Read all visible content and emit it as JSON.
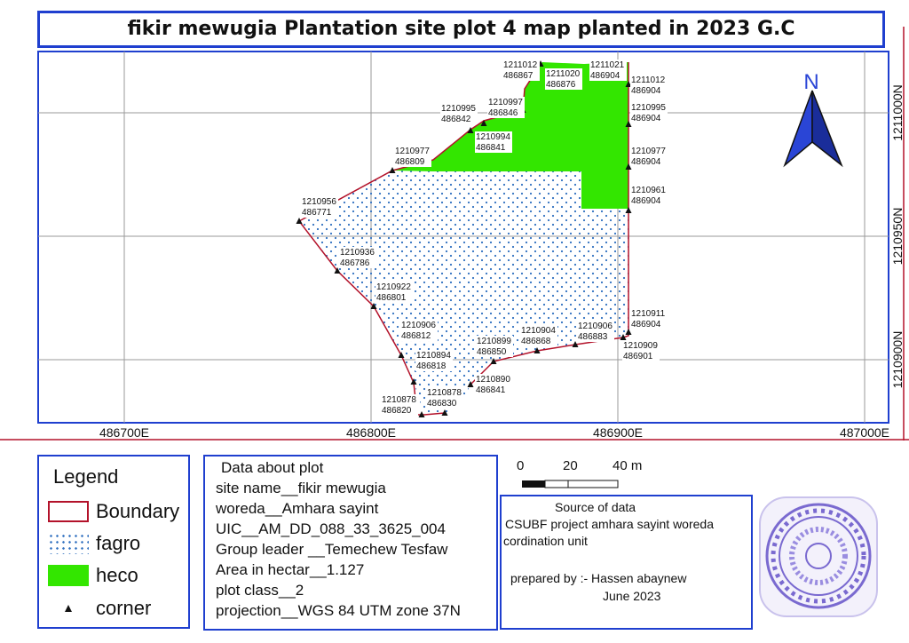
{
  "title": "fikir mewugia Plantation site plot 4 map planted in 2023 G.C",
  "map": {
    "x_ticks": [
      "486700E",
      "486800E",
      "486900E",
      "487000E"
    ],
    "y_ticks": [
      "1211000N",
      "1210950N",
      "1210900N"
    ],
    "north_label": "N",
    "points": [
      {
        "n": "1211012",
        "e": "486867"
      },
      {
        "n": "1211020",
        "e": "486876"
      },
      {
        "n": "1211021",
        "e": "486904"
      },
      {
        "n": "1211012",
        "e": "486904"
      },
      {
        "n": "1210997",
        "e": "486846"
      },
      {
        "n": "1210995",
        "e": "486842"
      },
      {
        "n": "1210995",
        "e": "486904"
      },
      {
        "n": "1210994",
        "e": "486841"
      },
      {
        "n": "1210977",
        "e": "486809"
      },
      {
        "n": "1210977",
        "e": "486904"
      },
      {
        "n": "1210961",
        "e": "486904"
      },
      {
        "n": "1210956",
        "e": "486771"
      },
      {
        "n": "1210936",
        "e": "486786"
      },
      {
        "n": "1210922",
        "e": "486801"
      },
      {
        "n": "1210911",
        "e": "486904"
      },
      {
        "n": "1210906",
        "e": "486812"
      },
      {
        "n": "1210904",
        "e": "486868"
      },
      {
        "n": "1210906",
        "e": "486883"
      },
      {
        "n": "1210909",
        "e": "486901"
      },
      {
        "n": "1210899",
        "e": "486850"
      },
      {
        "n": "1210894",
        "e": "486818"
      },
      {
        "n": "1210890",
        "e": "486841"
      },
      {
        "n": "1210878",
        "e": "486830"
      },
      {
        "n": "1210878",
        "e": "486820"
      }
    ]
  },
  "legend": {
    "title": "Legend",
    "items": [
      {
        "label": "Boundary"
      },
      {
        "label": "fagro"
      },
      {
        "label": "heco"
      },
      {
        "label": "corner"
      }
    ]
  },
  "info": {
    "title": "Data about plot",
    "lines": [
      "site name__fikir mewugia",
      "woreda__Amhara sayint",
      "UIC__AM_DD_088_33_3625_004",
      "Group leader __Temechew Tesfaw",
      "Area in hectar__1.127",
      "plot class__2",
      "projection__WGS 84 UTM zone 37N"
    ]
  },
  "scale": {
    "labels": [
      "0",
      "20",
      "40 m"
    ]
  },
  "source": {
    "title": "Source of data",
    "line1": "CSUBF project amhara sayint woreda",
    "line2": "cordination unit",
    "prepared": "prepared by :- Hassen abaynew",
    "date": "June 2023"
  },
  "colors": {
    "frame": "#1f3fcf",
    "boundary": "#b3122a",
    "heco": "#33e600",
    "fagro_dots": "#2f6fbf",
    "grid": "#9a9a9a",
    "north_arrow": "#2a45d6",
    "stamp": "#7a6ad0"
  }
}
